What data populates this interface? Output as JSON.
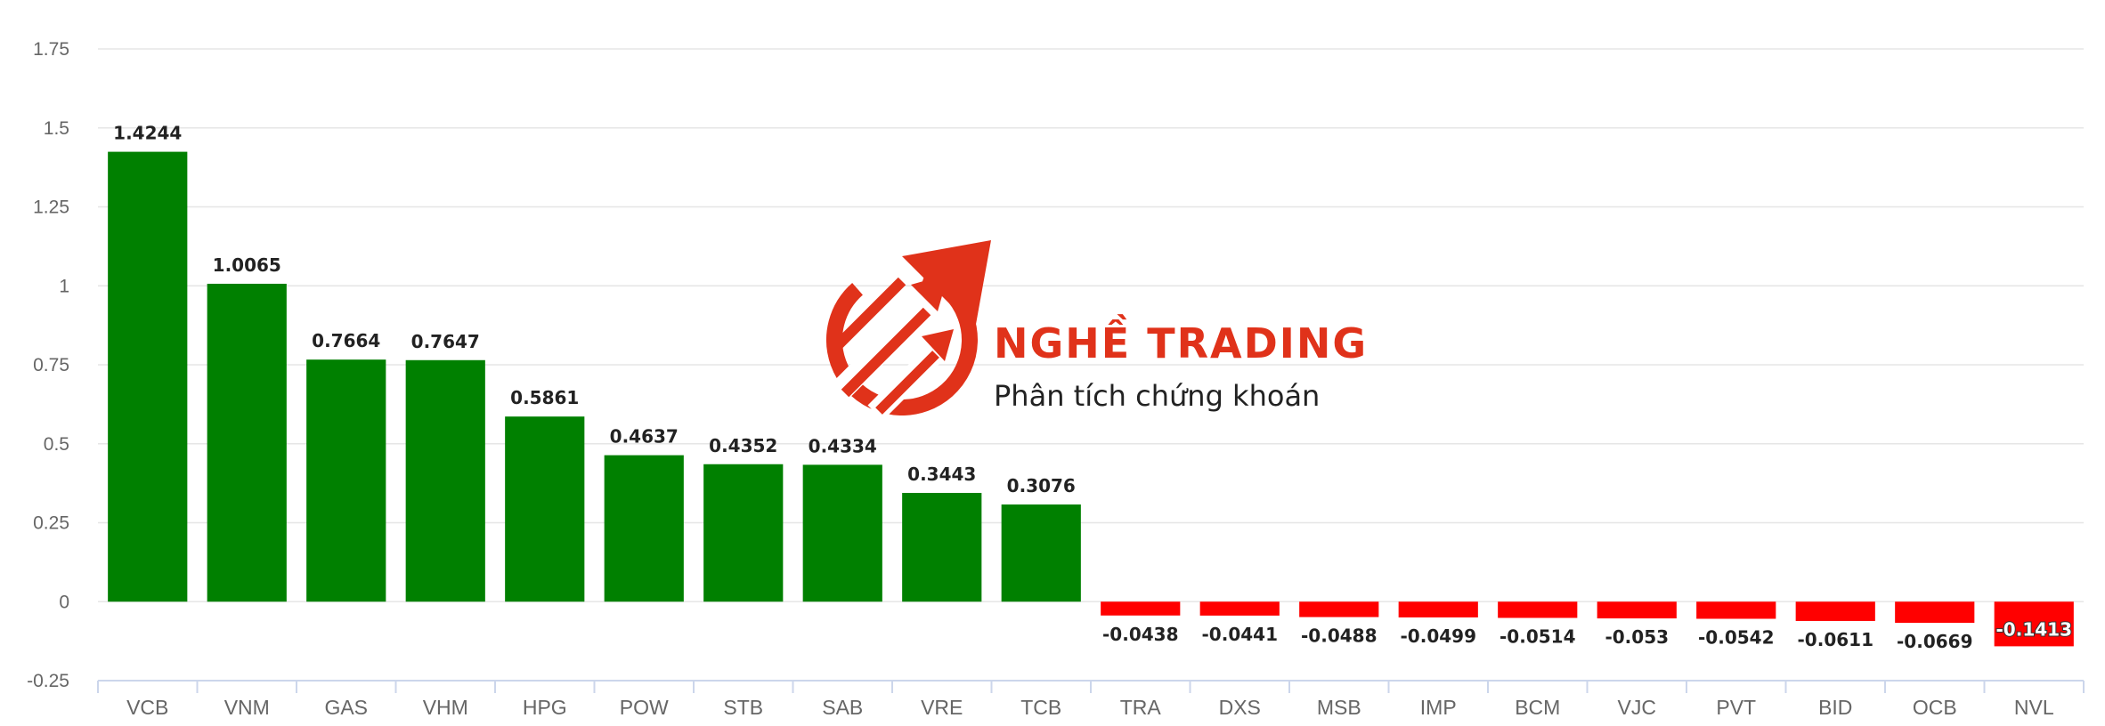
{
  "watermark": {
    "title": "NGHỀ TRADING",
    "subtitle": "Phân tích chứng khoán",
    "brand_color": "#e0321a",
    "icon": "rising-arrows-circle-icon"
  },
  "chart_data": {
    "type": "bar",
    "title": "",
    "xlabel": "",
    "ylabel": "",
    "ylim": [
      -0.25,
      1.75
    ],
    "yticks": [
      -0.25,
      0,
      0.25,
      0.5,
      0.75,
      1,
      1.25,
      1.5,
      1.75
    ],
    "ytick_labels": [
      "-0.25",
      "0",
      "0.25",
      "0.5",
      "0.75",
      "1",
      "1.25",
      "1.5",
      "1.75"
    ],
    "grid": true,
    "positive_color": "#008000",
    "negative_color": "#ff0000",
    "categories": [
      "VCB",
      "VNM",
      "GAS",
      "VHM",
      "HPG",
      "POW",
      "STB",
      "SAB",
      "VRE",
      "TCB",
      "TRA",
      "DXS",
      "MSB",
      "IMP",
      "BCM",
      "VJC",
      "PVT",
      "BID",
      "OCB",
      "NVL"
    ],
    "values": [
      1.4244,
      1.0065,
      0.7664,
      0.7647,
      0.5861,
      0.4637,
      0.4352,
      0.4334,
      0.3443,
      0.3076,
      -0.0438,
      -0.0441,
      -0.0488,
      -0.0499,
      -0.0514,
      -0.053,
      -0.0542,
      -0.0611,
      -0.0669,
      -0.1413
    ],
    "value_labels": [
      "1.4244",
      "1.0065",
      "0.7664",
      "0.7647",
      "0.5861",
      "0.4637",
      "0.4352",
      "0.4334",
      "0.3443",
      "0.3076",
      "-0.0438",
      "-0.0441",
      "-0.0488",
      "-0.0499",
      "-0.0514",
      "-0.053",
      "-0.0542",
      "-0.0611",
      "-0.0669",
      "-0.1413"
    ]
  }
}
